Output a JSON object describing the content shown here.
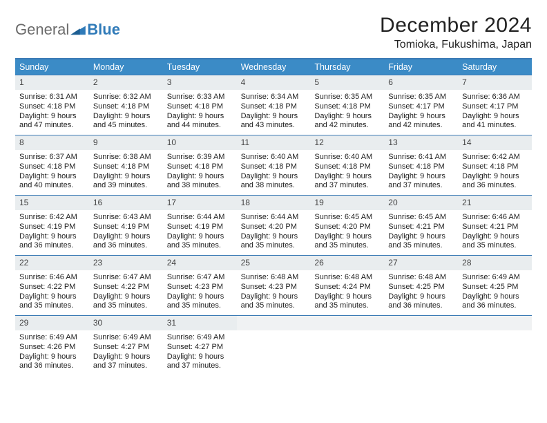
{
  "brand": {
    "part1": "General",
    "part2": "Blue"
  },
  "title": "December 2024",
  "subtitle": "Tomioka, Fukushima, Japan",
  "colors": {
    "header_bg": "#3b8bc6",
    "rule": "#3a7ab5",
    "daynum_bg": "#e9edef",
    "text": "#222222",
    "logo_gray": "#6b6b6b",
    "logo_blue": "#2f7ab8"
  },
  "dow": [
    "Sunday",
    "Monday",
    "Tuesday",
    "Wednesday",
    "Thursday",
    "Friday",
    "Saturday"
  ],
  "days": [
    {
      "n": 1,
      "sr": "6:31 AM",
      "ss": "4:18 PM",
      "dl": "9 hours and 47 minutes."
    },
    {
      "n": 2,
      "sr": "6:32 AM",
      "ss": "4:18 PM",
      "dl": "9 hours and 45 minutes."
    },
    {
      "n": 3,
      "sr": "6:33 AM",
      "ss": "4:18 PM",
      "dl": "9 hours and 44 minutes."
    },
    {
      "n": 4,
      "sr": "6:34 AM",
      "ss": "4:18 PM",
      "dl": "9 hours and 43 minutes."
    },
    {
      "n": 5,
      "sr": "6:35 AM",
      "ss": "4:18 PM",
      "dl": "9 hours and 42 minutes."
    },
    {
      "n": 6,
      "sr": "6:35 AM",
      "ss": "4:17 PM",
      "dl": "9 hours and 42 minutes."
    },
    {
      "n": 7,
      "sr": "6:36 AM",
      "ss": "4:17 PM",
      "dl": "9 hours and 41 minutes."
    },
    {
      "n": 8,
      "sr": "6:37 AM",
      "ss": "4:18 PM",
      "dl": "9 hours and 40 minutes."
    },
    {
      "n": 9,
      "sr": "6:38 AM",
      "ss": "4:18 PM",
      "dl": "9 hours and 39 minutes."
    },
    {
      "n": 10,
      "sr": "6:39 AM",
      "ss": "4:18 PM",
      "dl": "9 hours and 38 minutes."
    },
    {
      "n": 11,
      "sr": "6:40 AM",
      "ss": "4:18 PM",
      "dl": "9 hours and 38 minutes."
    },
    {
      "n": 12,
      "sr": "6:40 AM",
      "ss": "4:18 PM",
      "dl": "9 hours and 37 minutes."
    },
    {
      "n": 13,
      "sr": "6:41 AM",
      "ss": "4:18 PM",
      "dl": "9 hours and 37 minutes."
    },
    {
      "n": 14,
      "sr": "6:42 AM",
      "ss": "4:18 PM",
      "dl": "9 hours and 36 minutes."
    },
    {
      "n": 15,
      "sr": "6:42 AM",
      "ss": "4:19 PM",
      "dl": "9 hours and 36 minutes."
    },
    {
      "n": 16,
      "sr": "6:43 AM",
      "ss": "4:19 PM",
      "dl": "9 hours and 36 minutes."
    },
    {
      "n": 17,
      "sr": "6:44 AM",
      "ss": "4:19 PM",
      "dl": "9 hours and 35 minutes."
    },
    {
      "n": 18,
      "sr": "6:44 AM",
      "ss": "4:20 PM",
      "dl": "9 hours and 35 minutes."
    },
    {
      "n": 19,
      "sr": "6:45 AM",
      "ss": "4:20 PM",
      "dl": "9 hours and 35 minutes."
    },
    {
      "n": 20,
      "sr": "6:45 AM",
      "ss": "4:21 PM",
      "dl": "9 hours and 35 minutes."
    },
    {
      "n": 21,
      "sr": "6:46 AM",
      "ss": "4:21 PM",
      "dl": "9 hours and 35 minutes."
    },
    {
      "n": 22,
      "sr": "6:46 AM",
      "ss": "4:22 PM",
      "dl": "9 hours and 35 minutes."
    },
    {
      "n": 23,
      "sr": "6:47 AM",
      "ss": "4:22 PM",
      "dl": "9 hours and 35 minutes."
    },
    {
      "n": 24,
      "sr": "6:47 AM",
      "ss": "4:23 PM",
      "dl": "9 hours and 35 minutes."
    },
    {
      "n": 25,
      "sr": "6:48 AM",
      "ss": "4:23 PM",
      "dl": "9 hours and 35 minutes."
    },
    {
      "n": 26,
      "sr": "6:48 AM",
      "ss": "4:24 PM",
      "dl": "9 hours and 35 minutes."
    },
    {
      "n": 27,
      "sr": "6:48 AM",
      "ss": "4:25 PM",
      "dl": "9 hours and 36 minutes."
    },
    {
      "n": 28,
      "sr": "6:49 AM",
      "ss": "4:25 PM",
      "dl": "9 hours and 36 minutes."
    },
    {
      "n": 29,
      "sr": "6:49 AM",
      "ss": "4:26 PM",
      "dl": "9 hours and 36 minutes."
    },
    {
      "n": 30,
      "sr": "6:49 AM",
      "ss": "4:27 PM",
      "dl": "9 hours and 37 minutes."
    },
    {
      "n": 31,
      "sr": "6:49 AM",
      "ss": "4:27 PM",
      "dl": "9 hours and 37 minutes."
    }
  ],
  "labels": {
    "sunrise": "Sunrise: ",
    "sunset": "Sunset: ",
    "daylight": "Daylight: "
  },
  "fonts": {
    "title_size": 30,
    "subtitle_size": 16,
    "dow_size": 12.5,
    "cell_size": 11
  }
}
